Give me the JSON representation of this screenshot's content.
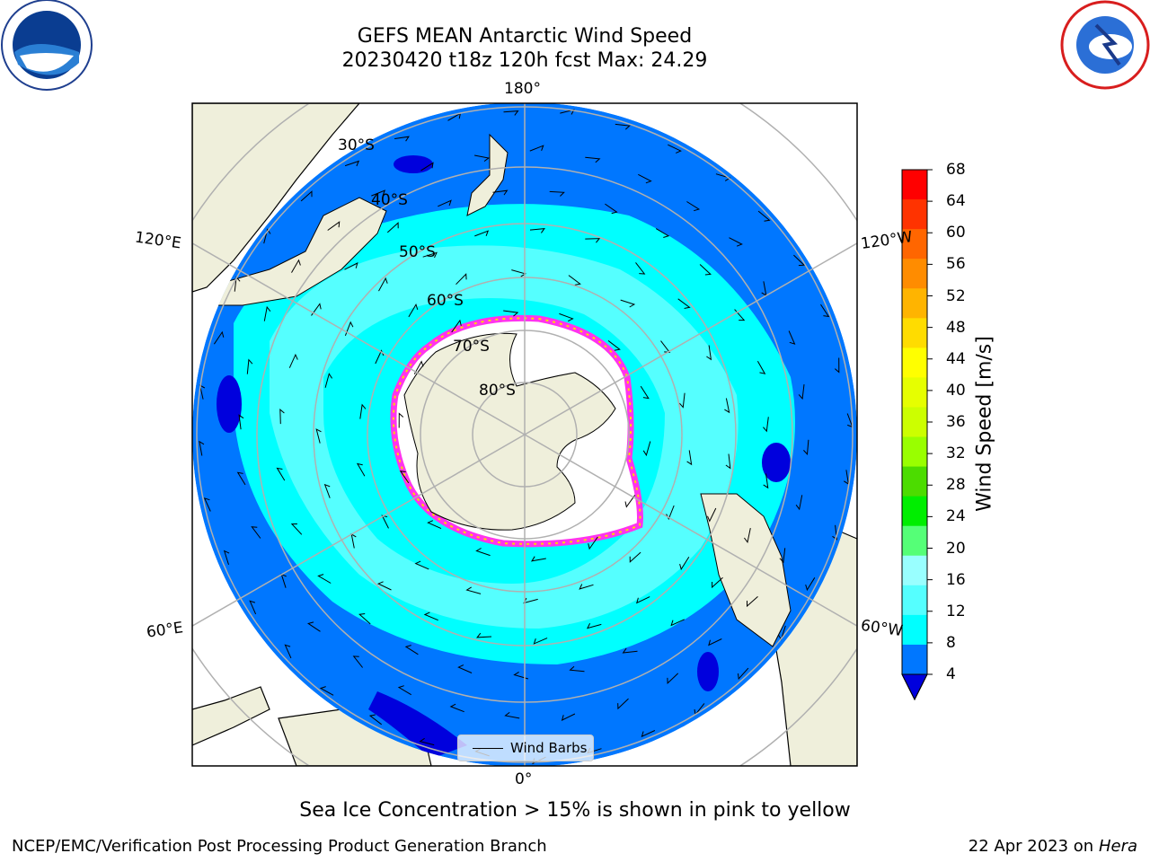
{
  "header": {
    "title_line1": "GEFS MEAN Antarctic Wind Speed",
    "title_line2": "20230420 t18z 120h fcst   Max: 24.29"
  },
  "logos": {
    "left": "noaa-logo",
    "right": "nws-logo"
  },
  "map": {
    "projection": "south-polar-stereographic",
    "lon_labels": [
      "180°",
      "120°E",
      "120°W",
      "60°E",
      "60°W",
      "0°"
    ],
    "lat_labels": [
      "30°S",
      "40°S",
      "50°S",
      "60°S",
      "70°S",
      "80°S"
    ],
    "legend_label": "Wind Barbs",
    "colors": {
      "ocean_dark": "#0000dd",
      "ocean_mid": "#0077ff",
      "ocean_light": "#00ffff",
      "ocean_lighter": "#55ffff",
      "ocean_lightest": "#99ffff",
      "land": "#efefdb",
      "sea_ice_edge": "#ff33ee",
      "grid": "#b0b0b0"
    }
  },
  "colorbar": {
    "label": "Wind Speed [m/s]",
    "ticks": [
      "68",
      "64",
      "60",
      "56",
      "52",
      "48",
      "44",
      "40",
      "36",
      "32",
      "28",
      "24",
      "20",
      "16",
      "12",
      "8",
      "4"
    ],
    "colors": [
      "#ff0000",
      "#ff3300",
      "#ff6600",
      "#ff8c00",
      "#ffb400",
      "#ffdc00",
      "#ffff00",
      "#e6ff00",
      "#ccff00",
      "#99ff00",
      "#4cdc00",
      "#00ee00",
      "#55ff77",
      "#99ffff",
      "#55ffff",
      "#00ffff",
      "#0077ff"
    ],
    "extend_color": "#0000dd"
  },
  "caption": "Sea Ice Concentration > 15% is shown in pink to yellow",
  "footer": {
    "left": "NCEP/EMC/Verification Post Processing Product Generation Branch",
    "right_date": "22 Apr 2023 on ",
    "right_host": "Hera"
  }
}
